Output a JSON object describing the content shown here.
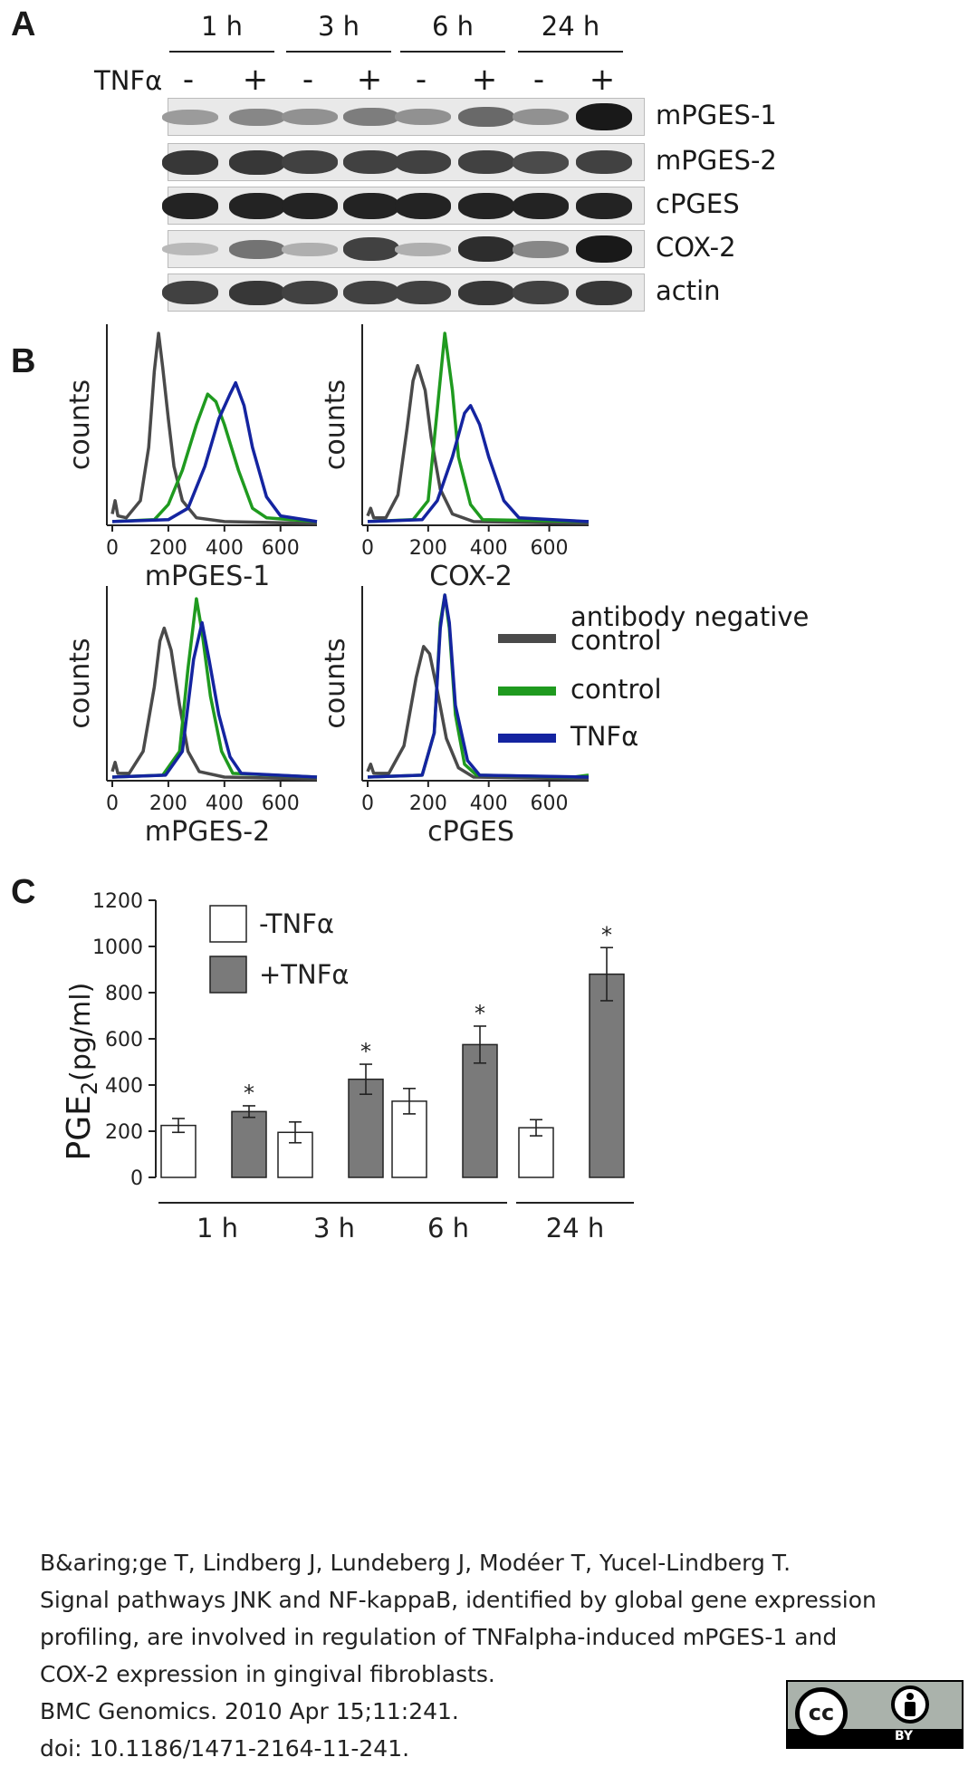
{
  "panel_a": {
    "letter": "A",
    "timepoints": [
      "1 h",
      "3 h",
      "6 h",
      "24 h"
    ],
    "treatment_label": "TNFα",
    "signs": [
      "-",
      "+",
      "-",
      "+",
      "-",
      "+",
      "-",
      "+"
    ],
    "blots": [
      {
        "name": "mPGES-1",
        "intensity": [
          0.35,
          0.45,
          0.4,
          0.5,
          0.4,
          0.6,
          0.4,
          1.0
        ]
      },
      {
        "name": "mPGES-2",
        "intensity": [
          0.85,
          0.85,
          0.8,
          0.8,
          0.8,
          0.8,
          0.75,
          0.8
        ]
      },
      {
        "name": "cPGES",
        "intensity": [
          0.95,
          0.95,
          0.95,
          0.95,
          0.95,
          0.95,
          0.95,
          0.95
        ]
      },
      {
        "name": "COX-2",
        "intensity": [
          0.2,
          0.55,
          0.25,
          0.8,
          0.25,
          0.9,
          0.45,
          1.0
        ]
      },
      {
        "name": "actin",
        "intensity": [
          0.8,
          0.85,
          0.8,
          0.8,
          0.8,
          0.85,
          0.8,
          0.85
        ]
      }
    ]
  },
  "panel_b": {
    "letter": "B",
    "y_label": "counts",
    "legend": [
      {
        "label": "antibody negative control",
        "color": "#4a4a4a"
      },
      {
        "label": "control",
        "color": "#1f9a1f"
      },
      {
        "label": "TNFα",
        "color": "#1424a0"
      }
    ]
  },
  "panel_c": {
    "letter": "C",
    "ylabel_main": "PGE",
    "ylabel_sub": "2",
    "ylabel_unit": "(pg/ml)",
    "significance_marker": "*"
  },
  "chart_data": [
    {
      "type": "line",
      "title": "mPGES-1",
      "xlabel": "mPGES-1",
      "ylabel": "counts",
      "xlim": [
        0,
        730
      ],
      "xticks": [
        "0",
        "200",
        "400",
        "600"
      ],
      "series": [
        {
          "name": "antibody negative control",
          "color": "#4a4a4a",
          "points": [
            [
              0,
              5
            ],
            [
              10,
              12
            ],
            [
              20,
              4
            ],
            [
              50,
              3
            ],
            [
              100,
              12
            ],
            [
              130,
              40
            ],
            [
              150,
              80
            ],
            [
              165,
              100
            ],
            [
              180,
              82
            ],
            [
              200,
              55
            ],
            [
              220,
              30
            ],
            [
              250,
              12
            ],
            [
              300,
              3
            ],
            [
              400,
              1
            ],
            [
              730,
              0
            ]
          ]
        },
        {
          "name": "control",
          "color": "#1f9a1f",
          "points": [
            [
              0,
              1
            ],
            [
              150,
              2
            ],
            [
              200,
              10
            ],
            [
              250,
              28
            ],
            [
              300,
              52
            ],
            [
              340,
              68
            ],
            [
              370,
              64
            ],
            [
              400,
              52
            ],
            [
              450,
              28
            ],
            [
              500,
              8
            ],
            [
              550,
              3
            ],
            [
              730,
              1
            ]
          ]
        },
        {
          "name": "TNFα",
          "color": "#1424a0",
          "points": [
            [
              0,
              1
            ],
            [
              200,
              2
            ],
            [
              270,
              8
            ],
            [
              330,
              30
            ],
            [
              380,
              55
            ],
            [
              420,
              68
            ],
            [
              440,
              74
            ],
            [
              470,
              62
            ],
            [
              500,
              40
            ],
            [
              550,
              14
            ],
            [
              600,
              4
            ],
            [
              730,
              1
            ]
          ]
        }
      ]
    },
    {
      "type": "line",
      "title": "COX-2",
      "xlabel": "COX-2",
      "ylabel": "counts",
      "xlim": [
        0,
        730
      ],
      "xticks": [
        "0",
        "200",
        "400",
        "600"
      ],
      "series": [
        {
          "name": "antibody negative control",
          "color": "#4a4a4a",
          "points": [
            [
              0,
              4
            ],
            [
              10,
              8
            ],
            [
              20,
              3
            ],
            [
              60,
              3
            ],
            [
              100,
              15
            ],
            [
              130,
              50
            ],
            [
              150,
              75
            ],
            [
              165,
              83
            ],
            [
              190,
              70
            ],
            [
              210,
              45
            ],
            [
              240,
              18
            ],
            [
              280,
              5
            ],
            [
              350,
              1
            ],
            [
              730,
              0
            ]
          ]
        },
        {
          "name": "control",
          "color": "#1f9a1f",
          "points": [
            [
              0,
              1
            ],
            [
              150,
              2
            ],
            [
              200,
              12
            ],
            [
              230,
              60
            ],
            [
              255,
              100
            ],
            [
              280,
              70
            ],
            [
              300,
              35
            ],
            [
              340,
              10
            ],
            [
              380,
              2
            ],
            [
              730,
              1
            ]
          ]
        },
        {
          "name": "TNFα",
          "color": "#1424a0",
          "points": [
            [
              0,
              1
            ],
            [
              180,
              2
            ],
            [
              230,
              12
            ],
            [
              280,
              35
            ],
            [
              320,
              58
            ],
            [
              340,
              62
            ],
            [
              370,
              52
            ],
            [
              400,
              35
            ],
            [
              450,
              12
            ],
            [
              500,
              3
            ],
            [
              730,
              1
            ]
          ]
        }
      ]
    },
    {
      "type": "line",
      "title": "mPGES-2",
      "xlabel": "mPGES-2",
      "ylabel": "counts",
      "xlim": [
        0,
        730
      ],
      "xticks": [
        "0",
        "200",
        "400",
        "600"
      ],
      "series": [
        {
          "name": "antibody negative control",
          "color": "#4a4a4a",
          "points": [
            [
              0,
              4
            ],
            [
              10,
              9
            ],
            [
              20,
              3
            ],
            [
              60,
              3
            ],
            [
              110,
              15
            ],
            [
              150,
              50
            ],
            [
              170,
              75
            ],
            [
              185,
              82
            ],
            [
              210,
              70
            ],
            [
              240,
              40
            ],
            [
              270,
              15
            ],
            [
              310,
              4
            ],
            [
              400,
              1
            ],
            [
              730,
              0
            ]
          ]
        },
        {
          "name": "control",
          "color": "#1f9a1f",
          "points": [
            [
              0,
              1
            ],
            [
              180,
              2
            ],
            [
              240,
              15
            ],
            [
              270,
              60
            ],
            [
              300,
              98
            ],
            [
              320,
              80
            ],
            [
              350,
              45
            ],
            [
              390,
              15
            ],
            [
              430,
              3
            ],
            [
              730,
              1
            ]
          ]
        },
        {
          "name": "TNFα",
          "color": "#1424a0",
          "points": [
            [
              0,
              1
            ],
            [
              190,
              2
            ],
            [
              250,
              15
            ],
            [
              290,
              65
            ],
            [
              320,
              85
            ],
            [
              345,
              65
            ],
            [
              380,
              35
            ],
            [
              420,
              12
            ],
            [
              460,
              3
            ],
            [
              730,
              1
            ]
          ]
        }
      ]
    },
    {
      "type": "line",
      "title": "cPGES",
      "xlabel": "cPGES",
      "ylabel": "counts",
      "xlim": [
        0,
        730
      ],
      "xticks": [
        "0",
        "200",
        "400",
        "600"
      ],
      "series": [
        {
          "name": "antibody negative control",
          "color": "#4a4a4a",
          "points": [
            [
              0,
              4
            ],
            [
              10,
              8
            ],
            [
              20,
              3
            ],
            [
              70,
              3
            ],
            [
              120,
              18
            ],
            [
              160,
              55
            ],
            [
              185,
              72
            ],
            [
              205,
              68
            ],
            [
              230,
              48
            ],
            [
              260,
              22
            ],
            [
              300,
              6
            ],
            [
              350,
              1
            ],
            [
              730,
              0
            ]
          ]
        },
        {
          "name": "control",
          "color": "#1f9a1f",
          "points": [
            [
              0,
              1
            ],
            [
              180,
              2
            ],
            [
              220,
              25
            ],
            [
              240,
              85
            ],
            [
              255,
              100
            ],
            [
              270,
              82
            ],
            [
              290,
              35
            ],
            [
              320,
              8
            ],
            [
              360,
              2
            ],
            [
              680,
              1
            ],
            [
              730,
              2
            ]
          ]
        },
        {
          "name": "TNFα",
          "color": "#1424a0",
          "points": [
            [
              0,
              1
            ],
            [
              180,
              2
            ],
            [
              220,
              25
            ],
            [
              240,
              82
            ],
            [
              255,
              100
            ],
            [
              270,
              85
            ],
            [
              290,
              40
            ],
            [
              330,
              10
            ],
            [
              370,
              2
            ],
            [
              730,
              1
            ]
          ]
        }
      ]
    },
    {
      "type": "bar",
      "title": "",
      "xlabel": "",
      "ylabel": "PGE2 (pg/ml)",
      "ylim": [
        0,
        1200
      ],
      "yticks": [
        "0",
        "200",
        "400",
        "600",
        "800",
        "1000",
        "1200"
      ],
      "categories": [
        "1 h",
        "3 h",
        "6 h",
        "24 h"
      ],
      "series": [
        {
          "name": "-TNFα",
          "color": "#ffffff",
          "values": [
            225,
            195,
            330,
            215
          ],
          "errors": [
            30,
            45,
            55,
            35
          ],
          "significant": [
            false,
            false,
            false,
            false
          ]
        },
        {
          "name": "+TNFα",
          "color": "#7a7a7a",
          "values": [
            285,
            425,
            575,
            880
          ],
          "errors": [
            25,
            65,
            80,
            115
          ],
          "significant": [
            true,
            true,
            true,
            true
          ]
        }
      ]
    }
  ],
  "citation": {
    "lines": [
      "B&aring;ge T, Lindberg J, Lundeberg J, Modéer T, Yucel-Lindberg T.",
      "Signal pathways JNK and NF-kappaB, identified by global gene expression",
      "profiling, are involved in regulation of TNFalpha-induced mPGES-1 and",
      "COX-2 expression in gingival fibroblasts.",
      "BMC Genomics. 2010 Apr 15;11:241.",
      "doi: 10.1186/1471-2164-11-241."
    ]
  },
  "license_badge": {
    "cc": "cc",
    "by": "BY"
  }
}
